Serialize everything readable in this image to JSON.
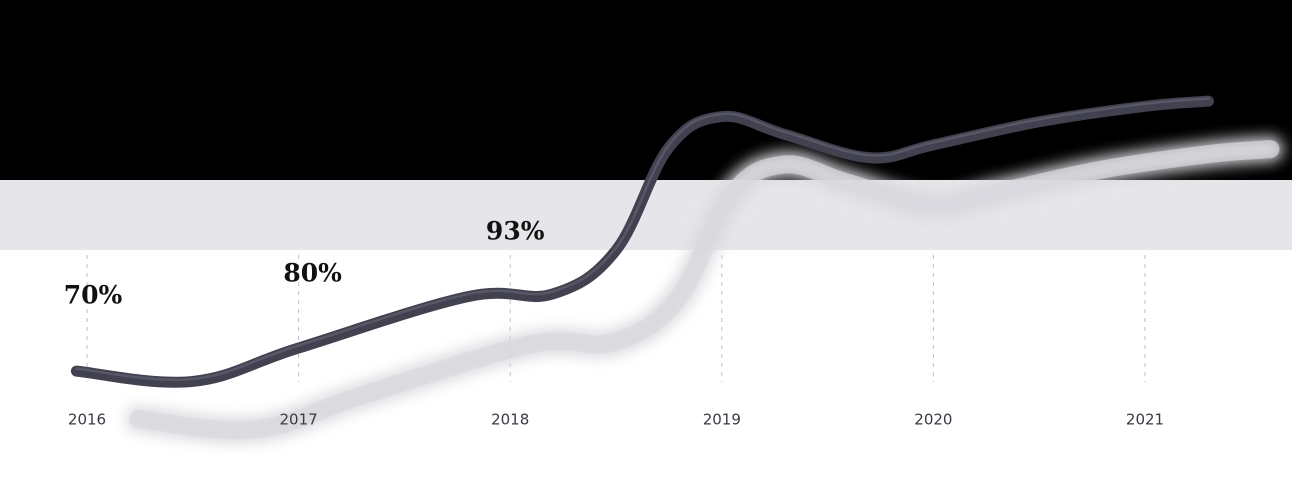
{
  "chart_data": {
    "type": "line",
    "title": "",
    "xlabel": "",
    "ylabel": "",
    "x_ticks": [
      "2016",
      "2017",
      "2018",
      "2019",
      "2020",
      "2021"
    ],
    "xlim": [
      2016,
      2021.3
    ],
    "ylim": [
      60,
      130
    ],
    "grid": "vertical dashed",
    "series": [
      {
        "color": "#41414f",
        "points": [
          {
            "x": 2015.95,
            "y": 69.5
          },
          {
            "x": 2016.5,
            "y": 67.5
          },
          {
            "x": 2017.0,
            "y": 74
          },
          {
            "x": 2017.8,
            "y": 84
          },
          {
            "x": 2018.2,
            "y": 84.5
          },
          {
            "x": 2018.5,
            "y": 93
          },
          {
            "x": 2018.75,
            "y": 113
          },
          {
            "x": 2019.0,
            "y": 119
          },
          {
            "x": 2019.3,
            "y": 115.5
          },
          {
            "x": 2019.7,
            "y": 111
          },
          {
            "x": 2020.0,
            "y": 113.5
          },
          {
            "x": 2020.5,
            "y": 118
          },
          {
            "x": 2021.0,
            "y": 121
          },
          {
            "x": 2021.3,
            "y": 122
          }
        ]
      }
    ],
    "shadow_color": "#d9d9de",
    "annotations": [
      {
        "text": "70%",
        "x": 2016
      },
      {
        "text": "80%",
        "x": 2017
      },
      {
        "text": "93%",
        "x": 2018
      }
    ]
  }
}
